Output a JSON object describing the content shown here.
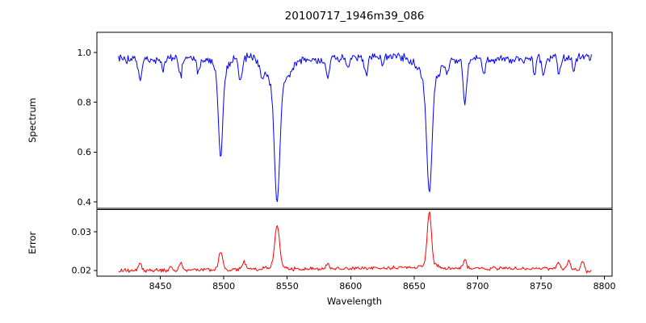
{
  "figure": {
    "background": "#ffffff",
    "accent_colors": {
      "spectrum_line": "#0000ff",
      "error_line": "#ff0000",
      "axes": "#000000"
    }
  },
  "chart_data": {
    "type": "line",
    "title": "20100717_1946m39_086",
    "xlabel": "Wavelength",
    "grid": false,
    "legend": false,
    "xlim": [
      8400,
      8806
    ],
    "xticks": [
      8450,
      8500,
      8550,
      8600,
      8650,
      8700,
      8750,
      8800
    ],
    "xtick_labels": [
      "8450",
      "8500",
      "8550",
      "8600",
      "8650",
      "8700",
      "8750",
      "8800"
    ],
    "x_start": 8417,
    "x_end": 8790,
    "x_step": 0.75,
    "panels": [
      {
        "name": "spectrum",
        "ylabel": "Spectrum",
        "ylim": [
          0.374,
          1.081
        ],
        "yticks": [
          0.4,
          0.6,
          0.8,
          1.0
        ],
        "ytick_labels": [
          "0.4",
          "0.6",
          "0.8",
          "1.0"
        ],
        "color": "#0000ff",
        "line_width": 1.0,
        "noise_amplitude": 0.022,
        "noise_seed": 20100717,
        "noise_scales_with_value": true,
        "continuum_points": [
          [
            8417,
            0.972
          ],
          [
            8460,
            0.976
          ],
          [
            8520,
            0.98
          ],
          [
            8560,
            0.972
          ],
          [
            8600,
            0.978
          ],
          [
            8630,
            0.985
          ],
          [
            8660,
            0.976
          ],
          [
            8700,
            0.975
          ],
          [
            8740,
            0.972
          ],
          [
            8770,
            0.98
          ],
          [
            8790,
            0.985
          ]
        ],
        "feature_format": [
          "center_wavelength",
          "amplitude",
          "sigma"
        ],
        "features": [
          [
            8434,
            -0.09,
            1.3
          ],
          [
            8452,
            -0.05,
            1.0
          ],
          [
            8466,
            -0.07,
            1.2
          ],
          [
            8480,
            -0.06,
            1.2
          ],
          [
            8497.5,
            -0.34,
            1.6
          ],
          [
            8497.5,
            -0.07,
            4.5
          ],
          [
            8513,
            -0.1,
            1.3
          ],
          [
            8530,
            -0.05,
            1.0
          ],
          [
            8542,
            -0.46,
            2.0
          ],
          [
            8542,
            -0.12,
            8.0
          ],
          [
            8582,
            -0.08,
            1.2
          ],
          [
            8598,
            -0.05,
            1.0
          ],
          [
            8612,
            -0.07,
            1.1
          ],
          [
            8625,
            -0.04,
            1.0
          ],
          [
            8662,
            -0.44,
            2.0
          ],
          [
            8662,
            -0.1,
            7.0
          ],
          [
            8676,
            -0.05,
            1.0
          ],
          [
            8690,
            -0.18,
            1.4
          ],
          [
            8705,
            -0.06,
            1.1
          ],
          [
            8745,
            -0.06,
            1.0
          ],
          [
            8752,
            -0.07,
            1.1
          ],
          [
            8764,
            -0.07,
            1.1
          ],
          [
            8776,
            -0.06,
            1.0
          ]
        ],
        "deep_line_minima": {
          "8498": 0.57,
          "8542": 0.4,
          "8662": 0.43,
          "8690": 0.79
        }
      },
      {
        "name": "error",
        "ylabel": "Error",
        "ylim": [
          0.0185,
          0.0358
        ],
        "yticks": [
          0.02,
          0.03
        ],
        "ytick_labels": [
          "0.02",
          "0.03"
        ],
        "color": "#ff0000",
        "line_width": 1.0,
        "noise_amplitude": 0.0006,
        "noise_seed": 1946,
        "noise_scales_with_value": false,
        "continuum_points": [
          [
            8417,
            0.0199
          ],
          [
            8480,
            0.0202
          ],
          [
            8560,
            0.0203
          ],
          [
            8640,
            0.0207
          ],
          [
            8700,
            0.0205
          ],
          [
            8770,
            0.0204
          ],
          [
            8790,
            0.0196
          ]
        ],
        "feature_format": [
          "center_wavelength",
          "amplitude",
          "sigma"
        ],
        "features": [
          [
            8434,
            0.0022,
            1.2
          ],
          [
            8458,
            0.0009,
            1.0
          ],
          [
            8466,
            0.0018,
            1.2
          ],
          [
            8497.5,
            0.0045,
            1.5
          ],
          [
            8516,
            0.0018,
            1.5
          ],
          [
            8542,
            0.011,
            1.8
          ],
          [
            8542,
            0.0008,
            6.0
          ],
          [
            8582,
            0.0012,
            1.2
          ],
          [
            8662,
            0.014,
            1.6
          ],
          [
            8662,
            0.001,
            6.0
          ],
          [
            8690,
            0.0022,
            1.2
          ],
          [
            8764,
            0.002,
            1.2
          ],
          [
            8772,
            0.0022,
            1.2
          ],
          [
            8783,
            0.0026,
            1.2
          ]
        ],
        "peak_maxima": {
          "8542": 0.032,
          "8662": 0.036
        }
      }
    ]
  }
}
